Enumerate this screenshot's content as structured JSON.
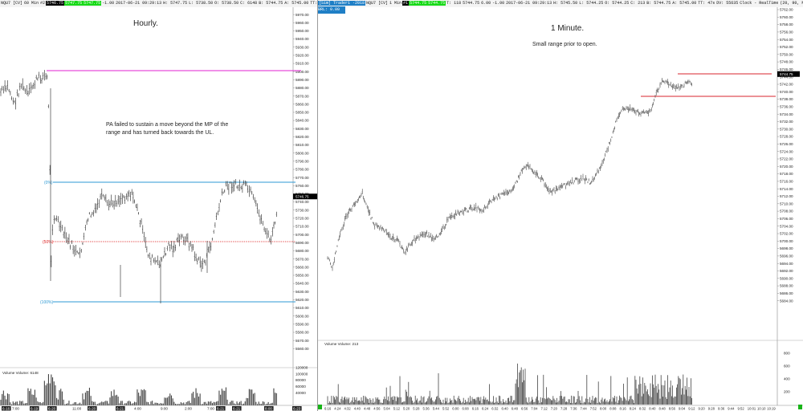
{
  "left": {
    "header": [
      "NQU7 [CV]",
      "60 Min",
      "#2",
      "5746.75",
      "5747.75",
      "5747.75",
      "-1.00",
      "2017-06-21 09:29:13",
      "H: 5747.75",
      "L: 5738.50",
      "O: 5738.50",
      "C: 6148",
      "B: 5744.75",
      "A: 5745.00",
      "TT: 30m 47s",
      "DV: 55635"
    ],
    "title": "Hourly.",
    "note_lines": [
      "PA failed to sustain a move beyond the MP of the",
      "range and has turned back towards the UL."
    ],
    "range_labels": {
      "top": "(0%)",
      "mid": "(50%)",
      "bottom": "(100%)"
    },
    "price_axis": [
      "5980.00",
      "5970.00",
      "5960.00",
      "5950.00",
      "5940.00",
      "5930.00",
      "5920.00",
      "5910.00",
      "5900.00",
      "5890.00",
      "5880.00",
      "5870.00",
      "5860.00",
      "5850.00",
      "5840.00",
      "5830.00",
      "5820.00",
      "5810.00",
      "5800.00",
      "5790.00",
      "5780.00",
      "5770.00",
      "5760.00",
      "5750.00",
      "5740.00",
      "5730.00",
      "5720.00",
      "5710.00",
      "5700.00",
      "5690.00",
      "5680.00",
      "5670.00",
      "5660.00",
      "5650.00",
      "5640.00",
      "5630.00",
      "5620.00",
      "5610.00",
      "5600.00",
      "5590.00",
      "5580.00",
      "5570.00",
      "5560.00"
    ],
    "last_price": "5746.75",
    "volume_label": "Volume  Volume: 6148",
    "volume_axis": [
      "120000",
      "100000",
      "80000",
      "60000",
      "40000"
    ],
    "time_axis": [
      "6-16",
      "7:00",
      "6-19",
      "6-20",
      "11:00",
      "6-20",
      "6-21",
      "4:00",
      "9:00",
      "2:00",
      "7:00",
      "6-21"
    ],
    "time_axis_extra": [
      "6-21",
      "8:00",
      "6-23"
    ],
    "colors": {
      "range_line": "#2e9ad4",
      "mp_line": "#d22",
      "upper_line": "#e020d0"
    }
  },
  "right": {
    "header": [
      "[Sim] Trader1 ·2018",
      "NQU7 [CV]",
      "1 Min",
      "#1",
      "5744.75",
      "5744.75",
      "T: 118",
      "5744.75",
      "6.00",
      "-1.00",
      "2017-06-21 09:29:13",
      "H: 5745.50",
      "L: 5744.25",
      "O: 5744.25",
      "C: 213",
      "B: 5744.75",
      "A: 5745.00",
      "TT: 47s",
      "DV: 55635",
      "Clock - RealTime",
      "(20, 90, No, No, No, No)"
    ],
    "header_line2": "BRL: 0.00",
    "title": "1 Minute.",
    "subtitle": "Small range prior to open.",
    "price_axis": [
      "5762.00",
      "5760.00",
      "5758.00",
      "5756.00",
      "5754.00",
      "5752.00",
      "5750.00",
      "5748.00",
      "5746.00",
      "5744.00",
      "5742.00",
      "5740.00",
      "5738.00",
      "5736.00",
      "5734.00",
      "5732.00",
      "5730.00",
      "5728.00",
      "5726.00",
      "5724.00",
      "5722.00",
      "5720.00",
      "5718.00",
      "5716.00",
      "5714.00",
      "5712.00",
      "5710.00",
      "5708.00",
      "5706.00",
      "5704.00",
      "5702.00",
      "5700.00",
      "5698.00",
      "5696.00",
      "5694.00",
      "5692.00",
      "5690.00",
      "5688.00",
      "5686.00",
      "5684.00"
    ],
    "last_price": "5744.75",
    "volume_label": "Volume  Volume: 213",
    "volume_axis": [
      "800",
      "600",
      "400",
      "200"
    ],
    "time_axis": [
      "6:16",
      "4:24",
      "4:32",
      "4:40",
      "4:48",
      "4:56",
      "5:04",
      "5:12",
      "5:20",
      "5:28",
      "5:36",
      "5:44",
      "5:52",
      "6:00",
      "6:08",
      "6:16",
      "6:24",
      "6:32",
      "6:40",
      "6:48",
      "6:56",
      "7:04",
      "7:12",
      "7:20",
      "7:28",
      "7:36",
      "7:44",
      "7:52",
      "8:00",
      "8:08",
      "8:16",
      "8:24",
      "8:32",
      "8:40",
      "8:48",
      "8:56",
      "9:04",
      "9:12",
      "9:20",
      "9:28",
      "9:36",
      "9:44",
      "9:52",
      "10:01",
      "10:10",
      "10:19"
    ],
    "colors": {
      "range_line": "#d8262c"
    }
  }
}
